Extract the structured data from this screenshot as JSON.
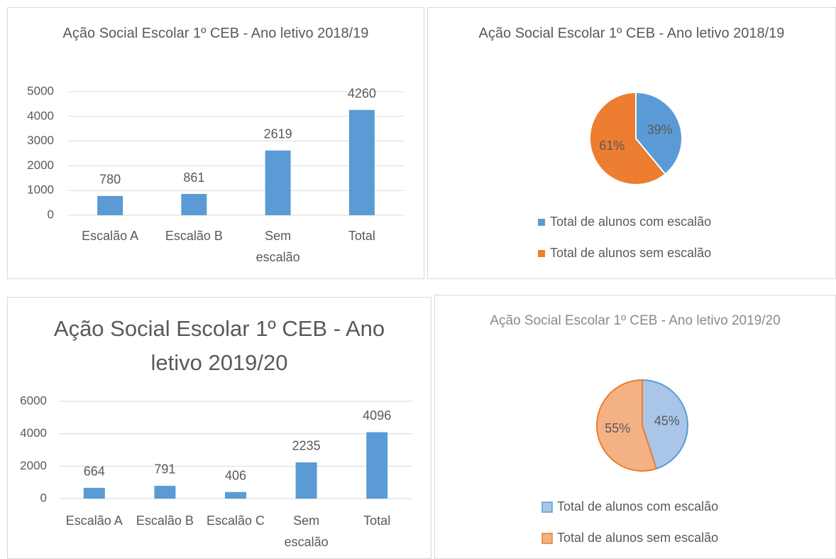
{
  "chart_data": [
    {
      "type": "bar",
      "title": "Ação Social Escolar 1º CEB - Ano letivo 2018/19",
      "categories": [
        "Escalão A",
        "Escalão B",
        "Sem escalão",
        "Total"
      ],
      "values": [
        780,
        861,
        2619,
        4260
      ],
      "color": "#5b9bd5",
      "ylim": [
        0,
        5000
      ],
      "yticks": [
        0,
        1000,
        2000,
        3000,
        4000,
        5000
      ],
      "grid": true
    },
    {
      "type": "pie",
      "title": "Ação Social Escolar 1º CEB - Ano letivo 2018/19",
      "categories": [
        "Total de alunos com escalão",
        "Total de alunos sem escalão"
      ],
      "values": [
        39,
        61
      ],
      "value_labels": [
        "39%",
        "61%"
      ],
      "colors": [
        "#5b9bd5",
        "#ed7d31"
      ],
      "edgecolors": [
        "#ffffff",
        "#ffffff"
      ],
      "legend": "bottom"
    },
    {
      "type": "bar",
      "title": "Ação Social Escolar 1º CEB - Ano letivo 2019/20",
      "categories": [
        "Escalão A",
        "Escalão B",
        "Escalão C",
        "Sem escalão",
        "Total"
      ],
      "values": [
        664,
        791,
        406,
        2235,
        4096
      ],
      "color": "#5b9bd5",
      "ylim": [
        0,
        6000
      ],
      "yticks": [
        0,
        2000,
        4000,
        6000
      ],
      "grid": true
    },
    {
      "type": "pie",
      "title": "Ação Social Escolar 1º CEB - Ano letivo 2019/20",
      "categories": [
        "Total de alunos com escalão",
        "Total de alunos sem escalão"
      ],
      "values": [
        45,
        55
      ],
      "value_labels": [
        "45%",
        "55%"
      ],
      "colors": [
        "#a9c6e8",
        "#f4b183"
      ],
      "edgecolors": [
        "#5b9bd5",
        "#ed7d31"
      ],
      "legend": "bottom"
    }
  ]
}
